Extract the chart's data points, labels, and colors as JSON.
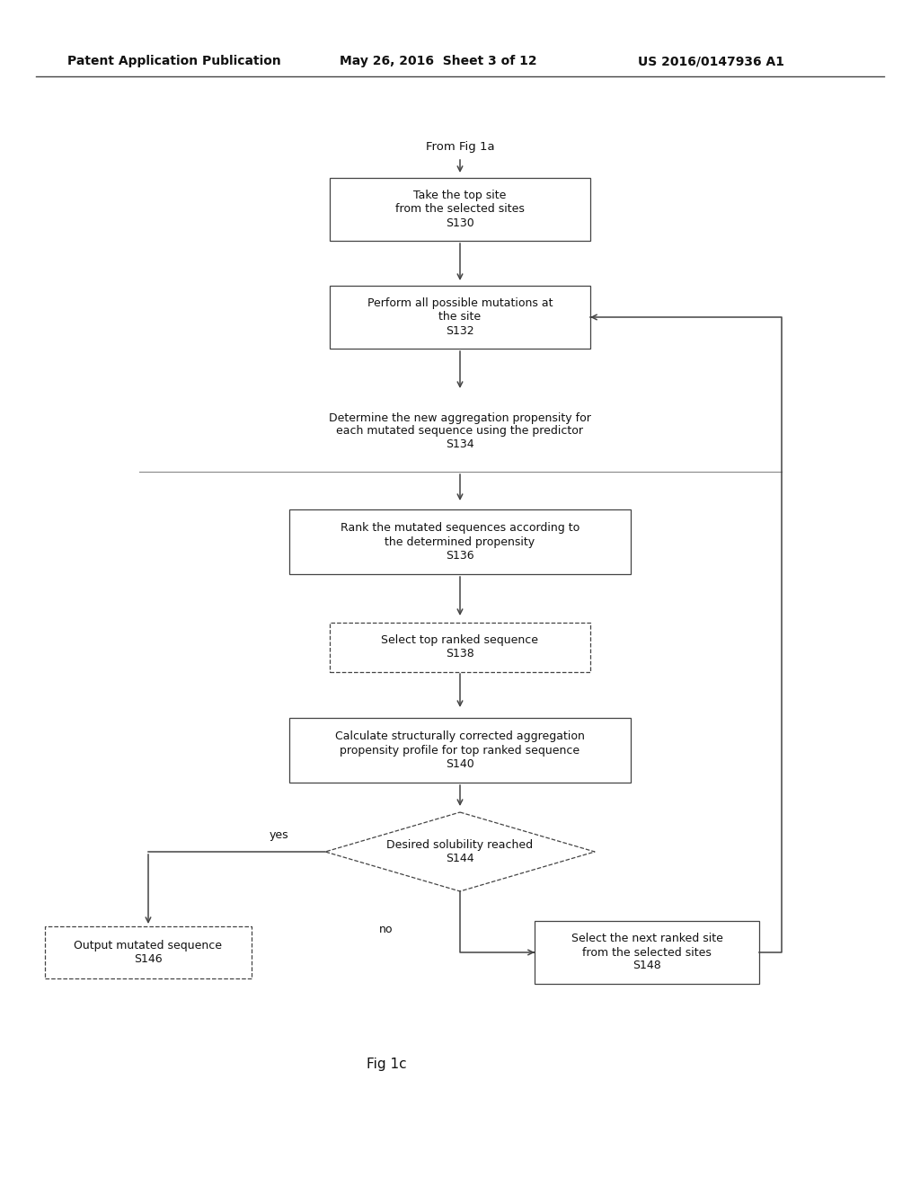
{
  "bg_color": "#ffffff",
  "header_left": "Patent Application Publication",
  "header_mid": "May 26, 2016  Sheet 3 of 12",
  "header_right": "US 2016/0147936 A1",
  "fig_label": "Fig 1c",
  "start_label": "From Fig 1a",
  "line_color": "#444444",
  "text_color": "#111111",
  "boxes": [
    {
      "id": "S130",
      "text": "Take the top site\nfrom the selected sites\nS130",
      "type": "rect_solid"
    },
    {
      "id": "S132",
      "text": "Perform all possible mutations at\nthe site\nS132",
      "type": "rect_solid"
    },
    {
      "id": "S134",
      "text": "Determine the new aggregation propensity for\neach mutated sequence using the predictor\nS134",
      "type": "text_only"
    },
    {
      "id": "S136",
      "text": "Rank the mutated sequences according to\nthe determined propensity\nS136",
      "type": "rect_solid"
    },
    {
      "id": "S138",
      "text": "Select top ranked sequence\nS138",
      "type": "rect_dashed"
    },
    {
      "id": "S140",
      "text": "Calculate structurally corrected aggregation\npropensity profile for top ranked sequence\nS140",
      "type": "rect_solid"
    },
    {
      "id": "S144",
      "text": "Desired solubility reached\nS144",
      "type": "diamond"
    },
    {
      "id": "S146",
      "text": "Output mutated sequence\nS146",
      "type": "rect_dashed"
    },
    {
      "id": "S148",
      "text": "Select the next ranked site\nfrom the selected sites\nS148",
      "type": "rect_solid"
    }
  ]
}
